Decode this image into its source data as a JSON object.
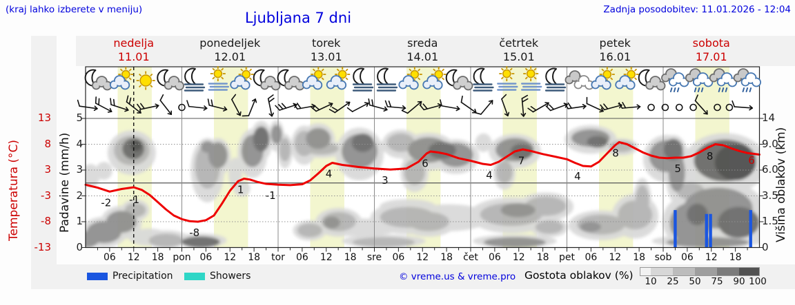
{
  "header": {
    "hint": "(kraj lahko izberete v meniju)",
    "title": "Ljubljana 7 dni",
    "updated": "Zadnja posodobitev: 11.01.2026 - 12:04"
  },
  "days": [
    {
      "name": "nedelja",
      "date": "11.01",
      "weekend": true
    },
    {
      "name": "ponedeljek",
      "date": "12.01",
      "weekend": false
    },
    {
      "name": "torek",
      "date": "13.01",
      "weekend": false
    },
    {
      "name": "sreda",
      "date": "14.01",
      "weekend": false
    },
    {
      "name": "četrtek",
      "date": "15.01",
      "weekend": false
    },
    {
      "name": "petek",
      "date": "16.01",
      "weekend": false
    },
    {
      "name": "sobota",
      "date": "17.01",
      "weekend": true
    }
  ],
  "axes": {
    "temp": {
      "title": "Temperatura (°C)",
      "ticks": [
        "13",
        "8",
        "3",
        "-3",
        "-8",
        "-13"
      ]
    },
    "precip": {
      "title": "Padavine (mm/h)",
      "ticks": [
        "5",
        "4",
        "3",
        "2",
        "1",
        "0"
      ]
    },
    "cloud_height": {
      "title": "Višina oblakov (km)",
      "ticks": [
        "14",
        "9.0",
        "6.0",
        "3.5",
        "1.5",
        "0"
      ]
    },
    "time": {
      "hour_labels": [
        "06",
        "12",
        "18"
      ],
      "day_abbrs": [
        "pon",
        "tor",
        "sre",
        "čet",
        "pet",
        "sob"
      ]
    }
  },
  "legend": {
    "precipitation": "Precipitation",
    "showers": "Showers",
    "credit": "© vreme.us & vreme.pro",
    "cloud_density_label": "Gostota oblakov (%)",
    "scale_labels": [
      "10",
      "25",
      "50",
      "75",
      "90",
      "100"
    ]
  },
  "colors": {
    "link_blue": "#0000dd",
    "weekend_red": "#cc0000",
    "temp_line": "#ee0000",
    "precip_bar": "#1a56e0",
    "showers": "#2fd6c6",
    "day_band": "#f3f6cf",
    "cloud_scale": [
      "#f2f2f2",
      "#d7d7d7",
      "#bcbcbc",
      "#9e9e9e",
      "#7b7b7b",
      "#525252"
    ],
    "cloud_density": {
      "25": "#d9d9d9",
      "50": "#b2b2b2",
      "75": "#8d8d8d",
      "90": "#696969",
      "100": "#4c4c4c"
    }
  },
  "chart_data": {
    "type": "meteogram",
    "location": "Ljubljana",
    "x_axis": {
      "unit": "hours from nedelja 11.01 00:00",
      "end_hour": 168,
      "minor_tick_every": 3
    },
    "now_line_hour": 12,
    "daylight_band_hours": [
      8,
      16.5
    ],
    "temperature_c": {
      "range": [
        -13,
        13
      ],
      "axis_tick_values": [
        13,
        8,
        3,
        -3,
        -8,
        -13
      ],
      "series": [
        [
          0,
          -0.4
        ],
        [
          3,
          -1.1
        ],
        [
          6,
          -2
        ],
        [
          9,
          -1.4
        ],
        [
          12,
          -1
        ],
        [
          14,
          -1.6
        ],
        [
          16,
          -2.8
        ],
        [
          18,
          -4.2
        ],
        [
          20,
          -5.6
        ],
        [
          22,
          -6.8
        ],
        [
          24,
          -7.5
        ],
        [
          26,
          -7.9
        ],
        [
          28,
          -8
        ],
        [
          30,
          -7.7
        ],
        [
          32,
          -6.8
        ],
        [
          34,
          -4.5
        ],
        [
          36,
          -1.8
        ],
        [
          38,
          0.4
        ],
        [
          39.5,
          1
        ],
        [
          41,
          0.8
        ],
        [
          43,
          0.2
        ],
        [
          45,
          -0.2
        ],
        [
          48,
          -0.4
        ],
        [
          51,
          -0.5
        ],
        [
          54,
          -0.3
        ],
        [
          56,
          0.6
        ],
        [
          58,
          2.2
        ],
        [
          60,
          3.8
        ],
        [
          61.5,
          4.4
        ],
        [
          64,
          4
        ],
        [
          68,
          3.6
        ],
        [
          72,
          3.3
        ],
        [
          76,
          3.1
        ],
        [
          80,
          3.3
        ],
        [
          83,
          4.6
        ],
        [
          85,
          6.2
        ],
        [
          86,
          6.6
        ],
        [
          88,
          6.4
        ],
        [
          90,
          6.1
        ],
        [
          93,
          5.3
        ],
        [
          96,
          4.8
        ],
        [
          99,
          4.2
        ],
        [
          101,
          4
        ],
        [
          103,
          4.6
        ],
        [
          105,
          5.6
        ],
        [
          107,
          6.6
        ],
        [
          109,
          7
        ],
        [
          111,
          6.7
        ],
        [
          114,
          6.1
        ],
        [
          117,
          5.6
        ],
        [
          120,
          5.1
        ],
        [
          122,
          4.4
        ],
        [
          124,
          3.8
        ],
        [
          126,
          3.7
        ],
        [
          128,
          4.6
        ],
        [
          130,
          6.2
        ],
        [
          132,
          7.8
        ],
        [
          133,
          8.4
        ],
        [
          135,
          8
        ],
        [
          137,
          7.2
        ],
        [
          139,
          6.4
        ],
        [
          141,
          5.8
        ],
        [
          143,
          5.4
        ],
        [
          145,
          5.3
        ],
        [
          147,
          5.4
        ],
        [
          149,
          5.4
        ],
        [
          151,
          5.7
        ],
        [
          153,
          6.4
        ],
        [
          155,
          7.3
        ],
        [
          157,
          8
        ],
        [
          159,
          7.8
        ],
        [
          161,
          7.2
        ],
        [
          163,
          6.7
        ],
        [
          165,
          6.3
        ],
        [
          168,
          6
        ]
      ],
      "point_labels": [
        [
          6,
          "-2"
        ],
        [
          13,
          "-1"
        ],
        [
          28,
          "-8"
        ],
        [
          39.5,
          "1"
        ],
        [
          47,
          "-1"
        ],
        [
          61.5,
          "4"
        ],
        [
          75.5,
          "3"
        ],
        [
          85.5,
          "6"
        ],
        [
          101.5,
          "4"
        ],
        [
          109.5,
          "7"
        ],
        [
          123.5,
          "4"
        ],
        [
          133,
          "8"
        ],
        [
          148.5,
          "5"
        ],
        [
          156.5,
          "8"
        ]
      ],
      "end_label": "6"
    },
    "precipitation_mm_h": {
      "range": [
        0,
        5
      ],
      "bars": [
        [
          147,
          1.45
        ],
        [
          154.8,
          1.3
        ],
        [
          155.8,
          1.3
        ],
        [
          165.8,
          1.45
        ]
      ]
    },
    "cloud_height_km": {
      "axis_tick_values": [
        0,
        1.5,
        3.5,
        6,
        9,
        14
      ]
    },
    "cloud_layers_h_km_w_t_density": [
      [
        1.2,
        5.5,
        4.8,
        2.4,
        25
      ],
      [
        4.6,
        6,
        4.1,
        1.9,
        25
      ],
      [
        11.5,
        8.6,
        8.9,
        4.1,
        50
      ],
      [
        11.9,
        8.7,
        5.5,
        2.9,
        90
      ],
      [
        12.6,
        9,
        2.8,
        1.6,
        100
      ],
      [
        0.3,
        0.4,
        6.2,
        1.1,
        75
      ],
      [
        4.6,
        0.9,
        8.6,
        1.3,
        75
      ],
      [
        8.9,
        1.6,
        7.6,
        1.5,
        75
      ],
      [
        12.4,
        2.4,
        5.2,
        1.1,
        50
      ],
      [
        15.8,
        0.6,
        10.3,
        1,
        25
      ],
      [
        20.1,
        0.4,
        8.6,
        0.8,
        50
      ],
      [
        28.7,
        0.3,
        9.6,
        0.7,
        90
      ],
      [
        30.4,
        6.6,
        6.2,
        4.8,
        50
      ],
      [
        33,
        7.8,
        4.8,
        3.2,
        75
      ],
      [
        30.4,
        8.8,
        3.4,
        1.6,
        75
      ],
      [
        37.3,
        5.8,
        3.4,
        3.3,
        25
      ],
      [
        39,
        4.2,
        4.1,
        1.5,
        25
      ],
      [
        41.6,
        8.6,
        5.5,
        4.5,
        75
      ],
      [
        43.8,
        10.3,
        4.1,
        4.3,
        90
      ],
      [
        47.6,
        10.9,
        2.8,
        3.7,
        75
      ],
      [
        49.7,
        8.6,
        2.8,
        3.2,
        50
      ],
      [
        55.9,
        1,
        6.2,
        0.8,
        50
      ],
      [
        54.5,
        9.6,
        4.8,
        4,
        50
      ],
      [
        58,
        10.3,
        6.2,
        3.7,
        75
      ],
      [
        58.8,
        8.6,
        8.6,
        1.6,
        50
      ],
      [
        68.3,
        8.6,
        8.9,
        4.8,
        75
      ],
      [
        69.1,
        9.6,
        5.5,
        3,
        90
      ],
      [
        75.1,
        8.9,
        4.8,
        1.6,
        25
      ],
      [
        63.1,
        1.6,
        8.6,
        1.3,
        50
      ],
      [
        61.4,
        1.5,
        4.1,
        0.8,
        75
      ],
      [
        78.6,
        9.6,
        6.9,
        3,
        50
      ],
      [
        85.5,
        8.6,
        10.3,
        3.5,
        75
      ],
      [
        88.9,
        8.4,
        6.9,
        2.2,
        90
      ],
      [
        92.3,
        7.8,
        8.6,
        2.9,
        75
      ],
      [
        82,
        5.9,
        5.2,
        2.7,
        50
      ],
      [
        80.3,
        1.9,
        13.8,
        1.5,
        50
      ],
      [
        85.5,
        1.6,
        10.3,
        1.3,
        50
      ],
      [
        74.3,
        0.3,
        15.5,
        0.6,
        50
      ],
      [
        99.2,
        9.6,
        4.1,
        3,
        25
      ],
      [
        107,
        8.6,
        9.6,
        3.2,
        75
      ],
      [
        108.7,
        8.2,
        5.5,
        1.9,
        90
      ],
      [
        104.4,
        5.9,
        4.1,
        2.4,
        50
      ],
      [
        106.1,
        2.1,
        15.5,
        1.7,
        50
      ],
      [
        107.8,
        2.4,
        8.6,
        1.1,
        75
      ],
      [
        107,
        0.3,
        15.5,
        0.6,
        75
      ],
      [
        114.7,
        2.7,
        10.3,
        1.5,
        50
      ],
      [
        115.6,
        1.2,
        6.9,
        0.8,
        50
      ],
      [
        125.9,
        10.3,
        9.6,
        3.2,
        75
      ],
      [
        127.6,
        9.6,
        5.2,
        2,
        90
      ],
      [
        133.6,
        8.9,
        6.2,
        1.6,
        50
      ],
      [
        128.5,
        1.4,
        12,
        1.3,
        50
      ],
      [
        125.9,
        1.2,
        5.2,
        0.6,
        75
      ],
      [
        137,
        2.1,
        8.6,
        2.1,
        50
      ],
      [
        138.8,
        3.2,
        3.4,
        2.7,
        50
      ],
      [
        144.8,
        7.8,
        8.6,
        4,
        75
      ],
      [
        146.5,
        8.6,
        4.8,
        2.9,
        90
      ],
      [
        150.8,
        1.6,
        10.3,
        2.7,
        75
      ],
      [
        152.5,
        2.1,
        5.2,
        1.6,
        90
      ],
      [
        159.4,
        7.4,
        15.5,
        5,
        90
      ],
      [
        162,
        7,
        10.3,
        4,
        100
      ],
      [
        157.7,
        2.7,
        17.2,
        3.2,
        75
      ],
      [
        162.8,
        1.6,
        10.3,
        2.1,
        90
      ],
      [
        150.8,
        4,
        6.9,
        1.6,
        50
      ],
      [
        155.1,
        0.3,
        20.6,
        0.6,
        75
      ],
      [
        147.4,
        5.9,
        4.1,
        4,
        75
      ],
      [
        68.3,
        1.2,
        20.6,
        1.1,
        25
      ],
      [
        90.6,
        1.9,
        20.6,
        1.9,
        25
      ],
      [
        80.3,
        2.7,
        13.8,
        1.1,
        25
      ]
    ],
    "weather_icons": [
      "mc",
      "sc",
      "s",
      "mc",
      "mf",
      "sf",
      "sc",
      "mc",
      "mc",
      "sc",
      "sc",
      "mf",
      "mf",
      "sc",
      "sc",
      "mc",
      "mf",
      "sf",
      "sf",
      "mf",
      "c",
      "sc",
      "sc",
      "mc",
      "cr",
      "cr",
      "cr",
      "cr"
    ],
    "wind_barbs_h_angle_feathers": [
      [
        0.7,
        8,
        1
      ],
      [
        4.5,
        28,
        2
      ],
      [
        8.5,
        18,
        2
      ],
      [
        12,
        38,
        2
      ],
      [
        16,
        -12,
        2
      ],
      [
        20,
        52,
        1
      ],
      [
        24,
        0,
        0
      ],
      [
        28,
        6,
        1
      ],
      [
        33,
        14,
        2
      ],
      [
        37.5,
        62,
        1
      ],
      [
        41.5,
        -68,
        1
      ],
      [
        46,
        78,
        2
      ],
      [
        50.5,
        -18,
        3
      ],
      [
        55,
        -10,
        2
      ],
      [
        59.5,
        -25,
        2
      ],
      [
        64,
        -35,
        2
      ],
      [
        68.5,
        -28,
        1
      ],
      [
        73,
        15,
        2
      ],
      [
        77.5,
        5,
        2
      ],
      [
        82,
        -40,
        1
      ],
      [
        86.5,
        -15,
        2
      ],
      [
        91,
        10,
        1
      ],
      [
        95.5,
        35,
        1
      ],
      [
        100,
        -50,
        1
      ],
      [
        104.5,
        70,
        1
      ],
      [
        109,
        85,
        2
      ],
      [
        113.5,
        -30,
        2
      ],
      [
        118,
        -20,
        2
      ],
      [
        122.5,
        -8,
        2
      ],
      [
        127,
        25,
        1
      ],
      [
        131.5,
        -15,
        2
      ],
      [
        136,
        -5,
        2
      ],
      [
        141,
        0,
        0
      ],
      [
        144.5,
        0,
        0
      ],
      [
        148,
        0,
        0
      ],
      [
        151.5,
        0,
        0
      ],
      [
        153.5,
        48,
        1
      ],
      [
        157.5,
        0,
        0
      ],
      [
        160.5,
        0,
        0
      ],
      [
        164,
        4,
        1
      ]
    ]
  }
}
